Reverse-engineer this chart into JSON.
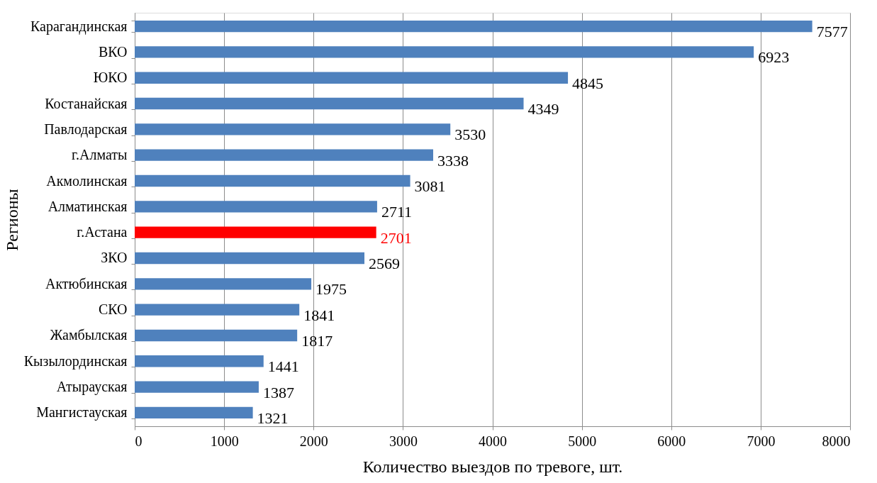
{
  "chart_data": {
    "type": "bar",
    "orientation": "horizontal",
    "xlabel": "Количество выездов по тревоге, шт.",
    "ylabel": "Регионы",
    "categories": [
      "Карагандинская",
      "ВКО",
      "ЮКО",
      "Костанайская",
      "Павлодарская",
      "г.Алматы",
      "Акмолинская",
      "Алматинская",
      "г.Астана",
      "ЗКО",
      "Актюбинская",
      "СКО",
      "Жамбылская",
      "Кызылординская",
      "Атырауская",
      "Мангистауская"
    ],
    "values": [
      7577,
      6923,
      4845,
      4349,
      3530,
      3338,
      3081,
      2711,
      2701,
      2569,
      1975,
      1841,
      1817,
      1441,
      1387,
      1321
    ],
    "colors": [
      "#4f81bd",
      "#4f81bd",
      "#4f81bd",
      "#4f81bd",
      "#4f81bd",
      "#4f81bd",
      "#4f81bd",
      "#4f81bd",
      "#ff0000",
      "#4f81bd",
      "#4f81bd",
      "#4f81bd",
      "#4f81bd",
      "#4f81bd",
      "#4f81bd",
      "#4f81bd"
    ],
    "xlim": [
      0,
      8000
    ],
    "xticks": [
      0,
      1000,
      2000,
      3000,
      4000,
      5000,
      6000,
      7000,
      8000
    ],
    "grid": "x",
    "data_labels": true
  }
}
